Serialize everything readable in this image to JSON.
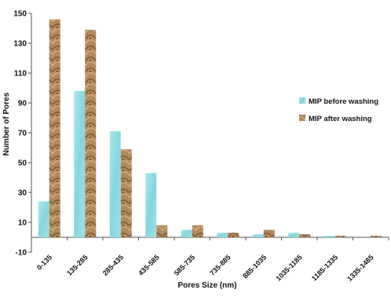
{
  "chart_data": {
    "type": "bar",
    "title": "",
    "xlabel": "Pores Size (nm)",
    "ylabel": "Number of Pores",
    "ylim": [
      -10,
      150
    ],
    "yticks": [
      -10,
      10,
      30,
      50,
      70,
      90,
      110,
      130,
      150
    ],
    "grid": false,
    "legend_position": "right",
    "categories": [
      "0-135",
      "135-285",
      "285-435",
      "435-585",
      "585-735",
      "735-885",
      "885-1035",
      "1035-1185",
      "1185-1335",
      "1335-1485"
    ],
    "series": [
      {
        "name": "MIP before washing",
        "color": "#8fdde3",
        "values": [
          24,
          98,
          71,
          43,
          5,
          3,
          2,
          3,
          1,
          0
        ]
      },
      {
        "name": "MIP after washing",
        "color": "#b0865a",
        "values": [
          146,
          139,
          59,
          8,
          8,
          3,
          5,
          2,
          1,
          1
        ]
      }
    ]
  }
}
